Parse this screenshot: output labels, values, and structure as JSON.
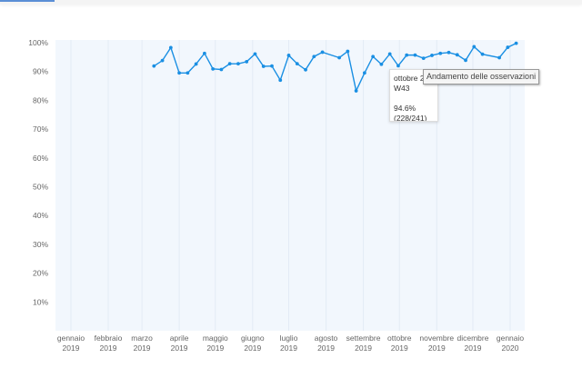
{
  "chart_data": {
    "type": "line",
    "title": "",
    "xlabel": "",
    "ylabel": "",
    "ylim": [
      0,
      100
    ],
    "y_ticks": [
      "10%",
      "20%",
      "30%",
      "40%",
      "50%",
      "60%",
      "70%",
      "80%",
      "90%",
      "100%"
    ],
    "x_ticks": [
      {
        "date": "2019-01-01",
        "month": "gennaio",
        "year": "2019"
      },
      {
        "date": "2019-02-01",
        "month": "febbraio",
        "year": "2019"
      },
      {
        "date": "2019-03-01",
        "month": "marzo",
        "year": "2019"
      },
      {
        "date": "2019-04-01",
        "month": "aprile",
        "year": "2019"
      },
      {
        "date": "2019-05-01",
        "month": "maggio",
        "year": "2019"
      },
      {
        "date": "2019-06-01",
        "month": "giugno",
        "year": "2019"
      },
      {
        "date": "2019-07-01",
        "month": "luglio",
        "year": "2019"
      },
      {
        "date": "2019-08-01",
        "month": "agosto",
        "year": "2019"
      },
      {
        "date": "2019-09-01",
        "month": "settembre",
        "year": "2019"
      },
      {
        "date": "2019-10-01",
        "month": "ottobre",
        "year": "2019"
      },
      {
        "date": "2019-11-01",
        "month": "novembre",
        "year": "2019"
      },
      {
        "date": "2019-12-01",
        "month": "dicembre",
        "year": "2019"
      },
      {
        "date": "2020-01-01",
        "month": "gennaio",
        "year": "2020"
      }
    ],
    "grid": {
      "vertical": true,
      "horizontal": false
    },
    "line_color": "#1a8fe3",
    "background_color": "#f2f7fd",
    "series": [
      {
        "x": [
          "2019-W11",
          "2019-W12",
          "2019-W13",
          "2019-W14",
          "2019-W15",
          "2019-W16",
          "2019-W17",
          "2019-W18",
          "2019-W19",
          "2019-W20",
          "2019-W21",
          "2019-W22",
          "2019-W23",
          "2019-W24",
          "2019-W25",
          "2019-W26",
          "2019-W27",
          "2019-W28",
          "2019-W29",
          "2019-W30",
          "2019-W31",
          "2019-W33",
          "2019-W34",
          "2019-W35",
          "2019-W36",
          "2019-W37",
          "2019-W38",
          "2019-W39",
          "2019-W40",
          "2019-W41",
          "2019-W42",
          "2019-W43",
          "2019-W44",
          "2019-W45",
          "2019-W46",
          "2019-W47",
          "2019-W48",
          "2019-W49",
          "2019-W50",
          "2019-W52",
          "2020-W01",
          "2020-W02"
        ],
        "values": [
          91.9,
          93.8,
          98.3,
          89.5,
          89.5,
          92.6,
          96.3,
          90.9,
          90.7,
          92.7,
          92.7,
          93.4,
          96.1,
          91.8,
          91.9,
          87.0,
          95.6,
          92.7,
          90.6,
          95.2,
          96.7,
          94.8,
          97.0,
          83.3,
          89.5,
          95.2,
          92.5,
          96.1,
          92.0,
          95.7,
          95.7,
          94.6,
          95.6,
          96.3,
          96.6,
          95.8,
          93.9,
          98.6,
          96.0,
          94.8,
          98.4,
          99.8
        ]
      }
    ],
    "tooltip": {
      "date_label": "ottobre 2019",
      "week": "W43",
      "value": "94.6%",
      "ratio": "(228/241)"
    }
  },
  "title_tooltip": "Andamento delle osservazioni"
}
